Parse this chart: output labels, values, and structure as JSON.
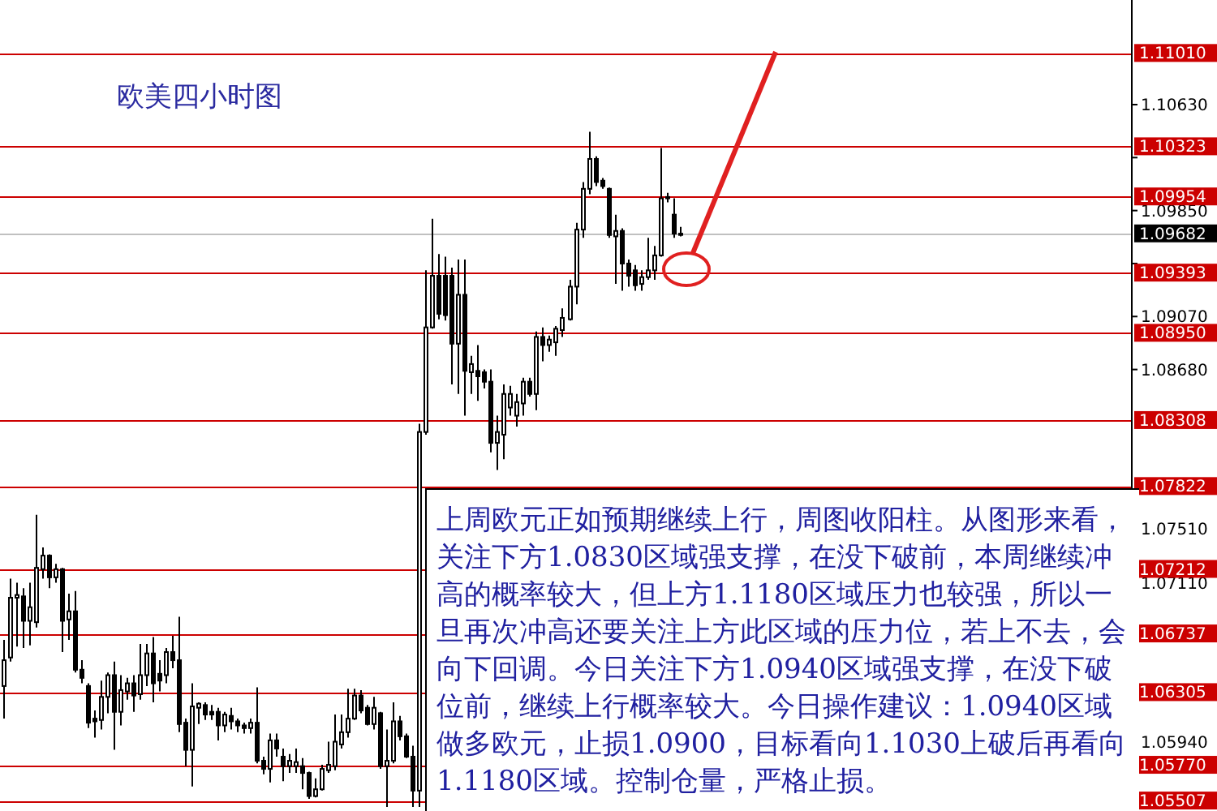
{
  "chart_data": {
    "type": "candlestick",
    "title": "欧美四小时图",
    "categories": [
      null,
      null,
      null,
      null,
      null,
      null,
      null,
      null,
      null,
      null,
      null,
      null,
      null,
      null,
      null,
      null,
      null,
      null,
      null,
      null,
      null,
      null,
      null,
      null,
      null,
      null,
      null,
      null,
      null,
      null,
      null,
      null,
      null,
      null,
      null,
      null,
      null,
      null,
      null,
      null,
      null,
      null,
      null,
      null,
      null,
      null,
      null,
      null,
      null,
      null,
      null,
      null,
      null,
      null,
      null,
      null,
      null,
      null,
      null,
      null,
      null,
      null,
      null,
      null,
      null,
      null,
      null,
      null,
      null,
      null,
      null,
      null,
      null,
      null,
      null,
      null,
      null,
      null,
      null,
      null,
      null,
      null,
      null,
      null,
      null,
      null,
      null,
      null,
      null,
      null,
      null,
      null,
      null,
      null,
      null,
      null,
      null,
      null,
      null,
      null,
      null,
      null,
      null,
      null,
      null,
      null,
      null,
      null,
      null,
      null,
      null,
      null,
      null,
      null,
      null,
      null,
      null,
      null,
      null,
      null,
      null,
      null,
      null,
      null,
      null,
      null,
      null,
      null,
      null,
      null,
      null,
      null,
      null,
      null,
      null,
      null,
      null,
      null,
      null,
      null,
      null,
      null,
      null,
      null,
      null,
      null,
      null,
      null,
      null,
      null,
      null,
      null,
      null,
      null,
      null,
      null,
      null,
      null,
      null,
      null,
      null,
      null,
      null,
      null,
      null,
      null,
      null,
      null,
      null,
      null,
      null,
      null,
      null,
      null
    ],
    "ohlc": [
      [
        1.0635,
        1.0669,
        1.0611,
        1.0654
      ],
      [
        1.0656,
        1.0714,
        1.0653,
        1.07
      ],
      [
        1.07,
        1.0711,
        1.0664,
        1.0702
      ],
      [
        1.0701,
        1.0707,
        1.0663,
        1.0683
      ],
      [
        1.0683,
        1.0711,
        1.0665,
        1.0693
      ],
      [
        1.0682,
        1.0761,
        1.0678,
        1.0722
      ],
      [
        1.0721,
        1.0737,
        1.0714,
        1.0731
      ],
      [
        1.0731,
        1.0732,
        1.0707,
        1.0715
      ],
      [
        1.0715,
        1.0725,
        1.0711,
        1.0721
      ],
      [
        1.0721,
        1.0722,
        1.066,
        1.0683
      ],
      [
        1.0684,
        1.0703,
        1.0669,
        1.069
      ],
      [
        1.069,
        1.0705,
        1.0645,
        1.0647
      ],
      [
        1.0647,
        1.0654,
        1.0637,
        1.0641
      ],
      [
        1.0635,
        1.0637,
        1.0604,
        1.0608
      ],
      [
        1.0611,
        1.0617,
        1.0597,
        1.0609
      ],
      [
        1.061,
        1.0639,
        1.0603,
        1.0627
      ],
      [
        1.0627,
        1.0645,
        1.0615,
        1.0643
      ],
      [
        1.0643,
        1.0653,
        1.0588,
        1.0616
      ],
      [
        1.0616,
        1.0643,
        1.0606,
        1.0632
      ],
      [
        1.0631,
        1.0641,
        1.0625,
        1.0637
      ],
      [
        1.0637,
        1.0643,
        1.0616,
        1.0628
      ],
      [
        1.0629,
        1.0666,
        1.0625,
        1.0643
      ],
      [
        1.0643,
        1.0666,
        1.0635,
        1.0659
      ],
      [
        1.0659,
        1.0671,
        1.0623,
        1.0637
      ],
      [
        1.0644,
        1.0654,
        1.0631,
        1.0639
      ],
      [
        1.0643,
        1.0663,
        1.0637,
        1.066
      ],
      [
        1.066,
        1.0672,
        1.0648,
        1.0654
      ],
      [
        1.0654,
        1.0686,
        1.0601,
        1.0607
      ],
      [
        1.0608,
        1.0611,
        1.0576,
        1.0588
      ],
      [
        1.0588,
        1.0637,
        1.0561,
        1.062
      ],
      [
        1.0619,
        1.0623,
        1.0607,
        1.0622
      ],
      [
        1.0621,
        1.0623,
        1.061,
        1.0614
      ],
      [
        1.0616,
        1.0621,
        1.061,
        1.0614
      ],
      [
        1.0616,
        1.0619,
        1.0595,
        1.0606
      ],
      [
        1.0606,
        1.0616,
        1.0601,
        1.0614
      ],
      [
        1.0613,
        1.0619,
        1.0603,
        1.0609
      ],
      [
        1.0609,
        1.0611,
        1.0601,
        1.0606
      ],
      [
        1.0606,
        1.0608,
        1.06,
        1.0604
      ],
      [
        1.0604,
        1.0611,
        1.06,
        1.0608
      ],
      [
        1.0608,
        1.0634,
        1.0578,
        1.058
      ],
      [
        1.058,
        1.0583,
        1.057,
        1.0574
      ],
      [
        1.0574,
        1.06,
        1.0564,
        1.0595
      ],
      [
        1.0595,
        1.06,
        1.0583,
        1.0589
      ],
      [
        1.0583,
        1.0589,
        1.0565,
        1.0576
      ],
      [
        1.0576,
        1.0585,
        1.0571,
        1.058
      ],
      [
        1.0576,
        1.0589,
        1.0571,
        1.0579
      ],
      [
        1.0576,
        1.0582,
        1.0559,
        1.0571
      ],
      [
        1.0571,
        1.0572,
        1.0552,
        1.0554
      ],
      [
        1.0554,
        1.0567,
        1.0553,
        1.0559
      ],
      [
        1.0559,
        1.0577,
        1.0558,
        1.0574
      ],
      [
        1.0573,
        1.0594,
        1.0571,
        1.0577
      ],
      [
        1.0576,
        1.0614,
        1.0573,
        1.0594
      ],
      [
        1.0592,
        1.0614,
        1.0589,
        1.0601
      ],
      [
        1.0601,
        1.0633,
        1.0597,
        1.0611
      ],
      [
        1.0611,
        1.0633,
        1.061,
        1.0628
      ],
      [
        1.0628,
        1.0632,
        1.0615,
        1.0617
      ],
      [
        1.0619,
        1.0621,
        1.0606,
        1.0607
      ],
      [
        1.0607,
        1.0627,
        1.0603,
        1.0619
      ],
      [
        1.0615,
        1.0616,
        1.0574,
        1.0576
      ],
      [
        1.0576,
        1.0603,
        1.0546,
        1.058
      ],
      [
        1.058,
        1.0623,
        1.0578,
        1.0609
      ],
      [
        1.0609,
        1.0613,
        1.0595,
        1.0598
      ],
      [
        1.0598,
        1.06,
        1.0582,
        1.0583
      ],
      [
        1.0583,
        1.0591,
        1.0546,
        1.0558
      ],
      [
        1.0558,
        1.0828,
        1.0546,
        1.0822
      ],
      [
        1.0822,
        1.0941,
        1.082,
        1.0899
      ],
      [
        1.0899,
        1.0979,
        1.0898,
        1.0937
      ],
      [
        1.0937,
        1.0953,
        1.0905,
        1.0909
      ],
      [
        1.0937,
        1.0951,
        1.0904,
        1.0908
      ],
      [
        1.0937,
        1.0943,
        1.0857,
        1.0887
      ],
      [
        1.0887,
        1.0949,
        1.085,
        1.0923
      ],
      [
        1.0923,
        1.0949,
        1.0834,
        1.0867
      ],
      [
        1.0866,
        1.0878,
        1.085,
        1.0872
      ],
      [
        1.0867,
        1.0886,
        1.0845,
        1.0863
      ],
      [
        1.0866,
        1.0868,
        1.0854,
        1.0859
      ],
      [
        1.0859,
        1.0868,
        1.0807,
        1.0814
      ],
      [
        1.0814,
        1.0834,
        1.0794,
        1.0822
      ],
      [
        1.082,
        1.0857,
        1.0802,
        1.085
      ],
      [
        1.084,
        1.0856,
        1.0834,
        1.085
      ],
      [
        1.0834,
        1.085,
        1.0826,
        1.0844
      ],
      [
        1.0843,
        1.0862,
        1.0834,
        1.0859
      ],
      [
        1.0859,
        1.0862,
        1.0848,
        1.085
      ],
      [
        1.085,
        1.0896,
        1.0838,
        1.0892
      ],
      [
        1.0892,
        1.0899,
        1.0874,
        1.0886
      ],
      [
        1.0886,
        1.0893,
        1.0881,
        1.089
      ],
      [
        1.0888,
        1.09,
        1.0878,
        1.0898
      ],
      [
        1.0897,
        1.0913,
        1.0892,
        1.0906
      ],
      [
        1.0905,
        1.0934,
        1.0904,
        1.0929
      ],
      [
        1.0929,
        1.0976,
        1.0916,
        1.0971
      ],
      [
        1.0971,
        1.1006,
        1.0965,
        1.1001
      ],
      [
        1.1001,
        1.1043,
        1.0997,
        1.1023
      ],
      [
        1.1023,
        1.1025,
        1.1003,
        1.1006
      ],
      [
        1.1007,
        1.1009,
        1.1001,
        1.1003
      ],
      [
        1.1001,
        1.1002,
        1.0965,
        1.0967
      ],
      [
        1.0966,
        1.0982,
        1.0931,
        1.097
      ],
      [
        1.097,
        1.0972,
        1.0926,
        1.0946
      ],
      [
        1.0946,
        1.0949,
        1.0929,
        1.0937
      ],
      [
        1.0941,
        1.0945,
        1.0926,
        1.093
      ],
      [
        1.0931,
        1.0941,
        1.0926,
        1.0936
      ],
      [
        1.0936,
        1.0965,
        1.0934,
        1.0941
      ],
      [
        1.0941,
        1.0959,
        1.0934,
        1.0952
      ],
      [
        1.0952,
        1.1031,
        1.0951,
        1.0994
      ],
      [
        1.0995,
        1.0998,
        1.0991,
        1.0994
      ],
      [
        1.0982,
        1.0994,
        1.0965,
        1.0968
      ],
      [
        1.0968,
        1.0973,
        1.0966,
        1.0968
      ],
      null,
      null,
      null,
      null,
      null,
      null,
      null,
      null,
      null,
      null,
      null,
      null,
      null,
      null,
      null,
      null,
      null,
      null,
      null,
      null,
      null,
      null,
      null,
      null,
      null,
      null,
      null,
      null,
      null,
      null,
      null,
      null,
      null,
      null,
      null,
      null,
      null,
      null,
      null,
      null,
      null,
      null,
      null,
      null,
      null,
      null,
      null,
      null,
      null,
      null,
      null,
      null,
      null,
      null,
      null,
      null,
      null,
      null,
      null,
      null,
      null,
      null,
      null,
      null,
      null,
      null,
      null,
      null,
      null
    ],
    "ylim": [
      1.0543,
      1.114
    ],
    "yticks": [
      {
        "value": 1.1063,
        "label": "1.10630"
      },
      {
        "value": 1.1024,
        "label": null
      },
      {
        "value": 1.0985,
        "label": "1.09850"
      },
      {
        "value": 1.0946,
        "label": null
      },
      {
        "value": 1.0907,
        "label": "1.09070"
      },
      {
        "value": 1.0868,
        "label": "1.08680"
      },
      {
        "value": 1.0751,
        "label": "1.07510"
      },
      {
        "value": 1.0711,
        "label": "1.07110"
      },
      {
        "value": 1.0594,
        "label": "1.05940"
      }
    ],
    "tick_labels": "y",
    "ref_lines": [
      {
        "axis": "y",
        "value": 1.1101,
        "label": "1.11010",
        "color": "#cc0000"
      },
      {
        "axis": "y",
        "value": 1.10323,
        "label": "1.10323",
        "color": "#cc0000"
      },
      {
        "axis": "y",
        "value": 1.09954,
        "label": "1.09954",
        "color": "#cc0000"
      },
      {
        "axis": "y",
        "value": 1.09682,
        "label": "1.09682",
        "color": "#c0c0c0"
      },
      {
        "axis": "y",
        "value": 1.09393,
        "label": "1.09393",
        "color": "#cc0000"
      },
      {
        "axis": "y",
        "value": 1.0895,
        "label": "1.08950",
        "color": "#cc0000"
      },
      {
        "axis": "y",
        "value": 1.08308,
        "label": "1.08308",
        "color": "#cc0000"
      },
      {
        "axis": "y",
        "value": 1.07822,
        "label": "1.07822",
        "color": "#cc0000"
      },
      {
        "axis": "y",
        "value": 1.07212,
        "label": "1.07212",
        "color": "#cc0000"
      },
      {
        "axis": "y",
        "value": 1.06737,
        "label": "1.06737",
        "color": "#cc0000"
      },
      {
        "axis": "y",
        "value": 1.06305,
        "label": "1.06305",
        "color": "#cc0000"
      },
      {
        "axis": "y",
        "value": 1.0577,
        "label": "1.05770",
        "color": "#cc0000"
      },
      {
        "axis": "y",
        "value": 1.05507,
        "label": "1.05507",
        "color": "#cc0000"
      }
    ],
    "annotations": [
      "上周欧元正如预期继续上行，周图收阳柱。从图形来看，关注下方1.0830区域强支撑，在没下破前，本周继续冲高的概率较大，但上方1.1180区域压力也较强，所以一旦再次冲高还要关注上方此区域的压力位，若上不去，会向下回调。今日关注下方1.0940区域强支撑，在没下破位前，继续上行概率较大。今日操作建议：1.0940区域做多欧元，止损1.0900，目标看向1.1030上破后再看向1.1180区域。控制仓量，严格止损。"
    ]
  }
}
